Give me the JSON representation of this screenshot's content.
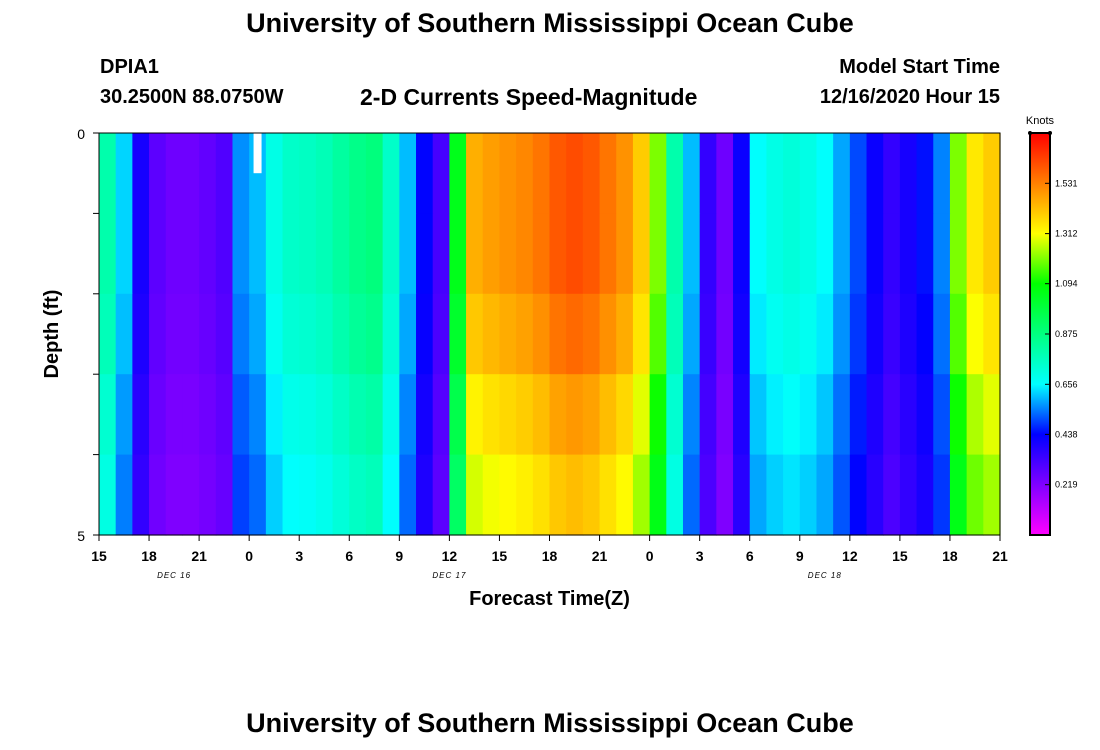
{
  "header": {
    "title": "University of Southern Mississippi Ocean Cube",
    "station": "DPIA1",
    "coords": "30.2500N 88.0750W",
    "subtitle": "2-D Currents Speed-Magnitude",
    "model_start_label": "Model Start Time",
    "model_start_value": "12/16/2020 Hour 15"
  },
  "footer": {
    "title": "University of Southern Mississippi Ocean Cube"
  },
  "chart_data": {
    "type": "heatmap",
    "title": "2-D Currents Speed-Magnitude",
    "xlabel": "Forecast Time(Z)",
    "ylabel": "Depth (ft)",
    "colorbar_label": "Knots",
    "y_ticks": [
      "0",
      "5"
    ],
    "x_ticks": [
      "15",
      "18",
      "21",
      "0",
      "3",
      "6",
      "9",
      "12",
      "15",
      "18",
      "21",
      "0",
      "3",
      "6",
      "9",
      "12",
      "15",
      "18",
      "21"
    ],
    "date_labels": [
      {
        "label": "DEC 16",
        "hour_index": 4.5
      },
      {
        "label": "DEC 17",
        "hour_index": 21
      },
      {
        "label": "DEC 18",
        "hour_index": 43.5
      }
    ],
    "colorbar_ticks": [
      "0.219",
      "0.438",
      "0.656",
      "0.875",
      "1.094",
      "1.312",
      "1.531"
    ],
    "color_range": [
      0.0,
      1.75
    ],
    "colormap": [
      "#ff00ff",
      "#8000ff",
      "#0000ff",
      "#00ffff",
      "#00ff80",
      "#00ff00",
      "#ffff00",
      "#ff8000",
      "#ff0000"
    ],
    "x_hours": 54,
    "depth_rows": 5,
    "hourly_speed_knots": [
      0.8,
      0.62,
      0.4,
      0.28,
      0.25,
      0.25,
      0.27,
      0.3,
      0.56,
      0.6,
      0.7,
      0.75,
      0.76,
      0.78,
      0.82,
      0.86,
      0.88,
      0.75,
      0.6,
      0.44,
      0.32,
      1.05,
      1.45,
      1.48,
      1.5,
      1.52,
      1.55,
      1.6,
      1.62,
      1.6,
      1.55,
      1.5,
      1.4,
      1.2,
      0.8,
      0.6,
      0.35,
      0.25,
      0.42,
      0.66,
      0.7,
      0.72,
      0.7,
      0.66,
      0.58,
      0.5,
      0.42,
      0.35,
      0.4,
      0.45,
      0.55,
      1.2,
      1.35,
      1.4
    ],
    "depth_factor": [
      1.0,
      1.0,
      0.97,
      0.92,
      0.88
    ],
    "missing_cell": {
      "hour": 9.5,
      "row": 0
    }
  }
}
